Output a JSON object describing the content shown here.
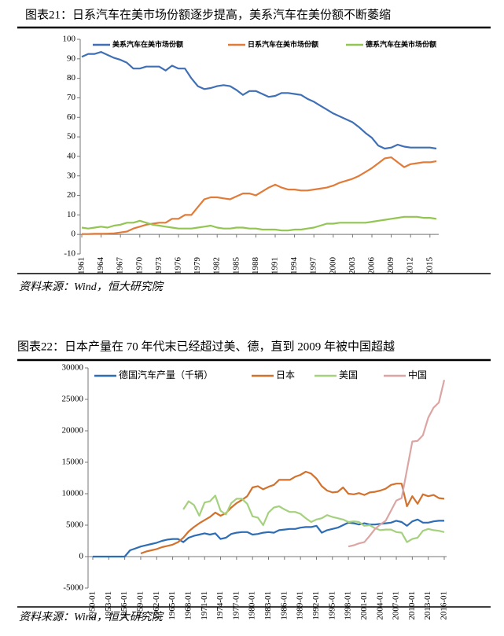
{
  "chart_data": [
    {
      "type": "line",
      "title": "图表21：日系汽车在美市场份额逐步提高，美系汽车在美份额不断萎缩",
      "source": "资料来源：Wind，恒大研究院",
      "x": [
        1961,
        1962,
        1963,
        1964,
        1965,
        1966,
        1967,
        1968,
        1969,
        1970,
        1971,
        1972,
        1973,
        1974,
        1975,
        1976,
        1977,
        1978,
        1979,
        1980,
        1981,
        1982,
        1983,
        1984,
        1985,
        1986,
        1987,
        1988,
        1989,
        1990,
        1991,
        1992,
        1993,
        1994,
        1995,
        1996,
        1997,
        1998,
        1999,
        2000,
        2001,
        2002,
        2003,
        2004,
        2005,
        2006,
        2007,
        2008,
        2009,
        2010,
        2011,
        2012,
        2013,
        2014,
        2015,
        2016
      ],
      "xlim": [
        1961,
        2016
      ],
      "xticks": [
        1961,
        1964,
        1967,
        1970,
        1973,
        1976,
        1979,
        1982,
        1985,
        1988,
        1991,
        1994,
        1997,
        2000,
        2003,
        2006,
        2009,
        2012,
        2015
      ],
      "ylim": [
        -10,
        100
      ],
      "yticks": [
        -10,
        0,
        10,
        20,
        30,
        40,
        50,
        60,
        70,
        80,
        90,
        100
      ],
      "series": [
        {
          "name": "美系汽车在美市场份额",
          "color": "#3f6fb4",
          "values": [
            91,
            92.5,
            92.5,
            93.5,
            92,
            90.5,
            89.5,
            88,
            85,
            85,
            86,
            86,
            86,
            84,
            86.5,
            85,
            85,
            80,
            76,
            74.5,
            75,
            76,
            76.5,
            76,
            74,
            71.5,
            73.5,
            73.5,
            72,
            70.5,
            71,
            72.5,
            72.5,
            72,
            71.5,
            69.5,
            68,
            66,
            64,
            62,
            60.5,
            59,
            57.5,
            55,
            52,
            49.5,
            45.5,
            44,
            44.5,
            46,
            45,
            44.5,
            44.5,
            44.5,
            44.5,
            44
          ]
        },
        {
          "name": "日系汽车在美市场份额",
          "color": "#e07b39",
          "values": [
            0.2,
            0.2,
            0.3,
            0.3,
            0.4,
            0.5,
            1,
            1.5,
            3,
            4,
            5,
            5.5,
            6,
            6,
            8,
            8,
            10,
            10,
            14,
            18,
            19,
            19,
            18.5,
            18,
            19.5,
            21,
            21,
            20,
            22,
            24,
            25.5,
            24,
            23,
            23,
            22.5,
            22.5,
            23,
            23.5,
            24,
            25,
            26.5,
            27.5,
            28.5,
            30,
            32,
            34,
            36.5,
            39,
            39.5,
            37,
            34.5,
            36,
            36.5,
            37,
            37,
            37.5
          ]
        },
        {
          "name": "德系汽车在美市场份额",
          "color": "#92c552",
          "values": [
            3.5,
            3,
            3.5,
            4,
            3.5,
            4.5,
            5,
            6,
            6,
            7,
            6,
            5,
            4.5,
            4,
            3.5,
            3,
            3,
            3,
            3.5,
            4,
            4.5,
            3.5,
            3,
            3,
            3.5,
            3.5,
            3,
            3,
            2.5,
            2.5,
            2.5,
            2,
            2,
            2.5,
            2.5,
            3,
            3.5,
            4.5,
            5.5,
            5.5,
            6,
            6,
            6,
            6,
            6,
            6.5,
            7,
            7.5,
            8,
            8.5,
            9,
            9,
            9,
            8.5,
            8.5,
            8
          ]
        }
      ]
    },
    {
      "type": "line",
      "title": "图表22：日本产量在 70 年代末已经超过美、德，直到 2009 年被中国超越",
      "source": "资料来源：Wind，恒大研究院",
      "x": [
        "1950-01",
        "1951-01",
        "1952-01",
        "1953-01",
        "1954-01",
        "1955-01",
        "1956-01",
        "1957-01",
        "1958-01",
        "1959-01",
        "1960-01",
        "1961-01",
        "1962-01",
        "1963-01",
        "1964-01",
        "1965-01",
        "1966-01",
        "1967-01",
        "1968-01",
        "1969-01",
        "1970-01",
        "1971-01",
        "1972-01",
        "1973-01",
        "1974-01",
        "1975-01",
        "1976-01",
        "1977-01",
        "1978-01",
        "1979-01",
        "1980-01",
        "1981-01",
        "1982-01",
        "1983-01",
        "1984-01",
        "1985-01",
        "1986-01",
        "1987-01",
        "1988-01",
        "1989-01",
        "1990-01",
        "1991-01",
        "1992-01",
        "1993-01",
        "1994-01",
        "1995-01",
        "1996-01",
        "1997-01",
        "1998-01",
        "1999-01",
        "2000-01",
        "2001-01",
        "2002-01",
        "2003-01",
        "2004-01",
        "2005-01",
        "2006-01",
        "2007-01",
        "2008-01",
        "2009-01",
        "2010-01",
        "2011-01",
        "2012-01",
        "2013-01",
        "2014-01",
        "2015-01",
        "2016-01"
      ],
      "ylim": [
        -5000,
        30000
      ],
      "yticks": [
        -5000,
        0,
        5000,
        10000,
        15000,
        20000,
        25000,
        30000
      ],
      "series": [
        {
          "name": "德国汽车产量（千辆）",
          "color": "#2e6db4",
          "values": [
            0,
            0,
            0,
            0,
            0,
            0,
            0,
            1000,
            1300,
            1600,
            1800,
            2000,
            2200,
            2500,
            2700,
            2800,
            2800,
            2300,
            3000,
            3300,
            3500,
            3700,
            3500,
            3700,
            2800,
            3000,
            3600,
            3800,
            3900,
            3900,
            3500,
            3600,
            3800,
            3900,
            3800,
            4200,
            4300,
            4400,
            4400,
            4600,
            4700,
            4700,
            4900,
            3800,
            4200,
            4400,
            4600,
            5000,
            5400,
            5300,
            5100,
            5300,
            5100,
            5100,
            5200,
            5300,
            5400,
            5700,
            5500,
            4900,
            5600,
            5900,
            5400,
            5400,
            5600,
            5700,
            5700
          ]
        },
        {
          "name": "日本",
          "color": "#d2722d",
          "values": [
            null,
            null,
            null,
            null,
            null,
            null,
            null,
            null,
            null,
            500,
            800,
            1000,
            1200,
            1500,
            1700,
            1900,
            2300,
            3000,
            4000,
            4700,
            5300,
            5800,
            6300,
            7000,
            6500,
            6900,
            7800,
            8500,
            9000,
            9600,
            11000,
            11200,
            10700,
            11100,
            11400,
            12200,
            12200,
            12200,
            12700,
            13000,
            13500,
            13200,
            12400,
            11200,
            10500,
            10200,
            10300,
            11000,
            10000,
            9900,
            10100,
            9800,
            10200,
            10300,
            10500,
            10800,
            11400,
            11600,
            11600,
            8000,
            9600,
            8400,
            9900,
            9600,
            9800,
            9300,
            9200
          ]
        },
        {
          "name": "美国",
          "color": "#a5d17f",
          "values": [
            null,
            null,
            null,
            null,
            null,
            null,
            null,
            null,
            null,
            null,
            null,
            null,
            null,
            null,
            null,
            null,
            null,
            7500,
            8800,
            8200,
            6500,
            8600,
            8800,
            9700,
            7300,
            6700,
            8500,
            9200,
            9200,
            8400,
            6400,
            6200,
            5000,
            7000,
            7800,
            8000,
            7500,
            7100,
            7100,
            6800,
            6100,
            5500,
            5900,
            6100,
            6600,
            6300,
            6100,
            5900,
            5500,
            5600,
            5500,
            4900,
            5000,
            4500,
            4200,
            4300,
            4300,
            3900,
            3800,
            2300,
            2800,
            3000,
            4100,
            4400,
            4200,
            4100,
            3900
          ]
        },
        {
          "name": "中国",
          "color": "#dba5a3",
          "values": [
            null,
            null,
            null,
            null,
            null,
            null,
            null,
            null,
            null,
            null,
            null,
            null,
            null,
            null,
            null,
            null,
            null,
            null,
            null,
            null,
            null,
            null,
            null,
            null,
            null,
            null,
            null,
            null,
            null,
            null,
            null,
            null,
            null,
            null,
            null,
            null,
            null,
            null,
            null,
            null,
            null,
            null,
            null,
            null,
            null,
            null,
            null,
            null,
            1600,
            1800,
            2100,
            2300,
            3300,
            4400,
            5100,
            5700,
            7300,
            8900,
            9300,
            13800,
            18300,
            18400,
            19300,
            22100,
            23700,
            24500,
            28100
          ]
        }
      ]
    }
  ]
}
